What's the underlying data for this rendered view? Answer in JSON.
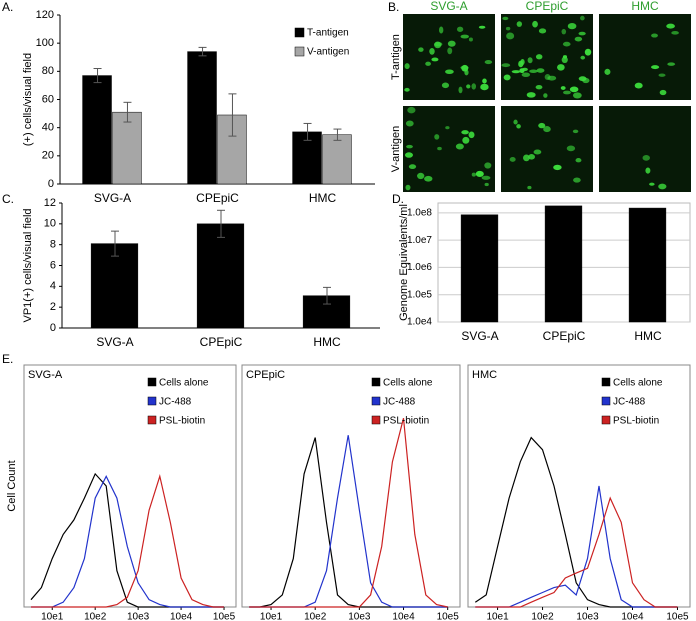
{
  "chart_data": [
    {
      "type": "bar",
      "panel": "A.",
      "ylabel": "(+) cells/visual field",
      "categories": [
        "SVG-A",
        "CPEpiC",
        "HMC"
      ],
      "series": [
        {
          "name": "T-antigen",
          "color": "#000000",
          "values": [
            77,
            94,
            37
          ],
          "errors": [
            5,
            3,
            6
          ]
        },
        {
          "name": "V-antigen",
          "color": "#a6a6a6",
          "values": [
            51,
            49,
            35
          ],
          "errors": [
            7,
            15,
            4
          ]
        }
      ],
      "ylim": [
        0,
        120
      ],
      "yticks": [
        0,
        20,
        40,
        60,
        80,
        100,
        120
      ],
      "grid": false,
      "legend": "top-right"
    },
    {
      "type": "bar",
      "panel": "C.",
      "ylabel": "VP1(+) cells/visual field",
      "categories": [
        "SVG-A",
        "CPEpiC",
        "HMC"
      ],
      "series": [
        {
          "color": "#000000",
          "values": [
            8.1,
            10,
            3.1
          ],
          "errors": [
            1.2,
            1.3,
            0.8
          ]
        }
      ],
      "ylim": [
        0,
        12
      ],
      "yticks": [
        0,
        2,
        4,
        6,
        8,
        10,
        12
      ],
      "grid": false
    },
    {
      "type": "bar",
      "panel": "D.",
      "ylabel": "Genome Equivalents/ml",
      "categories": [
        "SVG-A",
        "CPEpiC",
        "HMC"
      ],
      "series": [
        {
          "color": "#000000",
          "values": [
            85000000,
            180000000,
            150000000
          ]
        }
      ],
      "log_scale": true,
      "ylim": [
        10000,
        230000000
      ],
      "yticks": [
        {
          "value": 10000,
          "label": "1.0e4"
        },
        {
          "value": 100000,
          "label": "1.0e5"
        },
        {
          "value": 1000000,
          "label": "1.0e6"
        },
        {
          "value": 10000000,
          "label": "1.0e7"
        },
        {
          "value": 100000000,
          "label": "1.0e8"
        }
      ],
      "grid": true
    },
    {
      "type": "line",
      "panel": "E.",
      "title": "SVG-A",
      "ylabel": "Cell Count",
      "log_x": true,
      "x": [
        3.2,
        5.6,
        10,
        18,
        32,
        56,
        100,
        180,
        320,
        560,
        1000,
        1800,
        3200,
        5600,
        10000,
        18000,
        32000,
        56000,
        100000
      ],
      "series": [
        {
          "name": "Cells alone",
          "color": "#000000",
          "values": [
            3,
            8,
            20,
            30,
            36,
            45,
            55,
            50,
            15,
            2,
            0,
            0,
            0,
            0,
            0,
            0,
            0,
            0,
            0
          ]
        },
        {
          "name": "JC-488",
          "color": "#2233cc",
          "values": [
            0,
            0,
            0,
            2,
            8,
            20,
            45,
            54,
            45,
            25,
            10,
            3,
            1,
            0,
            0,
            0,
            0,
            0,
            0
          ]
        },
        {
          "name": "PSL-biotin",
          "color": "#cc2222",
          "values": [
            0,
            0,
            0,
            0,
            0,
            0,
            0,
            0,
            1,
            4,
            15,
            40,
            54,
            35,
            12,
            3,
            1,
            0,
            0
          ]
        }
      ],
      "xlim": [
        2.2,
        190000
      ],
      "ylim": [
        0,
        100
      ],
      "xticks": [
        {
          "value": 10,
          "label": "10e1"
        },
        {
          "value": 100,
          "label": "10e2"
        },
        {
          "value": 1000,
          "label": "10e3"
        },
        {
          "value": 10000,
          "label": "10e4"
        },
        {
          "value": 100000,
          "label": "10e5"
        }
      ],
      "legend": "top-right"
    },
    {
      "type": "line",
      "title": "CPEpiC",
      "log_x": true,
      "x": [
        3.2,
        5.6,
        10,
        18,
        32,
        56,
        100,
        180,
        320,
        560,
        1000,
        1800,
        3200,
        5600,
        10000,
        18000,
        32000,
        56000,
        100000
      ],
      "series": [
        {
          "name": "Cells alone",
          "color": "#000000",
          "values": [
            0,
            0,
            1,
            5,
            20,
            55,
            70,
            35,
            5,
            1,
            0,
            0,
            0,
            0,
            0,
            0,
            0,
            0,
            0
          ]
        },
        {
          "name": "JC-488",
          "color": "#2233cc",
          "values": [
            0,
            0,
            0,
            0,
            0,
            0,
            2,
            15,
            45,
            71,
            40,
            10,
            2,
            0,
            0,
            0,
            0,
            0,
            0
          ]
        },
        {
          "name": "PSL-biotin",
          "color": "#cc2222",
          "values": [
            0,
            0,
            0,
            0,
            0,
            0,
            0,
            0,
            0,
            0,
            0,
            5,
            25,
            60,
            78,
            30,
            5,
            1,
            0
          ]
        }
      ],
      "xlim": [
        2.2,
        190000
      ],
      "ylim": [
        0,
        100
      ],
      "xticks": [
        {
          "value": 10,
          "label": "10e1"
        },
        {
          "value": 100,
          "label": "10e2"
        },
        {
          "value": 1000,
          "label": "10e3"
        },
        {
          "value": 10000,
          "label": "10e4"
        },
        {
          "value": 100000,
          "label": "10e5"
        }
      ],
      "legend": "top-right"
    },
    {
      "type": "line",
      "title": "HMC",
      "log_x": true,
      "x": [
        3.2,
        5.6,
        10,
        18,
        32,
        56,
        100,
        180,
        320,
        560,
        1000,
        1800,
        3200,
        5600,
        10000,
        18000,
        32000,
        56000,
        100000
      ],
      "series": [
        {
          "name": "Cells alone",
          "color": "#000000",
          "values": [
            2,
            5,
            25,
            45,
            60,
            70,
            65,
            50,
            30,
            10,
            3,
            1,
            0,
            0,
            0,
            0,
            0,
            0,
            0
          ]
        },
        {
          "name": "JC-488",
          "color": "#2233cc",
          "values": [
            0,
            0,
            0,
            0,
            2,
            4,
            6,
            8,
            9,
            5,
            20,
            50,
            20,
            3,
            0,
            0,
            0,
            0,
            0
          ]
        },
        {
          "name": "PSL-biotin",
          "color": "#cc2222",
          "values": [
            0,
            0,
            0,
            0,
            0,
            2,
            4,
            6,
            12,
            14,
            16,
            30,
            45,
            35,
            10,
            3,
            0,
            0,
            0
          ]
        }
      ],
      "xlim": [
        2.2,
        190000
      ],
      "ylim": [
        0,
        100
      ],
      "xticks": [
        {
          "value": 10,
          "label": "10e1"
        },
        {
          "value": 100,
          "label": "10e2"
        },
        {
          "value": 1000,
          "label": "10e3"
        },
        {
          "value": 10000,
          "label": "10e4"
        },
        {
          "value": 100000,
          "label": "10e5"
        }
      ],
      "legend": "top-right"
    }
  ],
  "panel_b": {
    "label": "B.",
    "columns": [
      "SVG-A",
      "CPEpiC",
      "HMC"
    ],
    "rows": [
      "T-antigen",
      "V-antigen"
    ]
  }
}
